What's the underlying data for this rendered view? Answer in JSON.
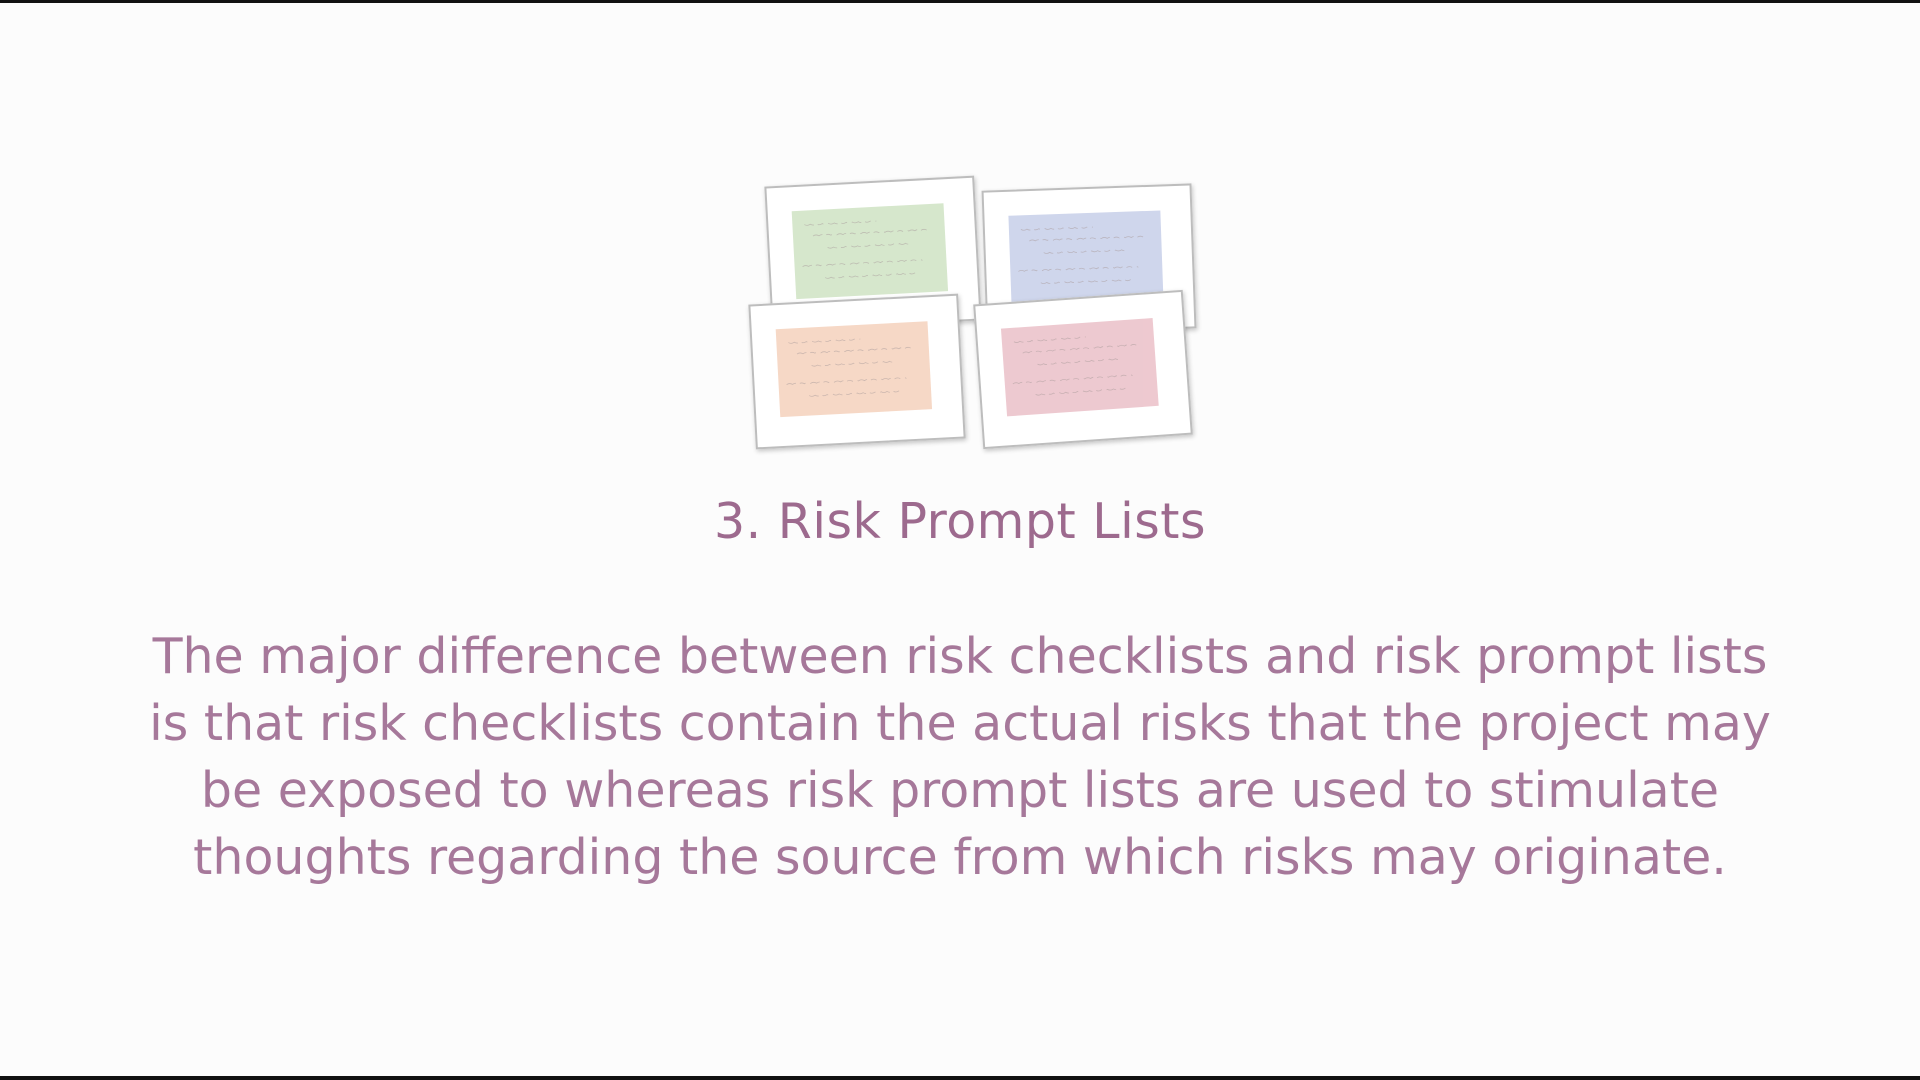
{
  "slide": {
    "title": "3. Risk Prompt Lists",
    "body_lines": [
      "The major difference between risk checklists and risk prompt lists",
      "is that risk checklists contain the actual risks that the project may",
      "be exposed to whereas risk prompt lists are used to stimulate",
      "thoughts regarding the source from which risks may originate."
    ]
  },
  "illustration": {
    "icon": "prompt-cards-icon",
    "note_colors": [
      "#cfe3c4",
      "#c7cfe9",
      "#f5d2bd",
      "#ebc0c8"
    ],
    "ink_color": "#9a8a8a"
  }
}
